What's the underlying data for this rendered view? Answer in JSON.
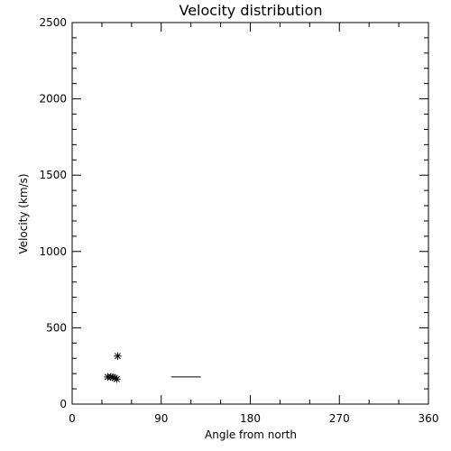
{
  "chart_data": {
    "type": "scatter",
    "title": "Velocity distribution",
    "xlabel": "Angle from north",
    "ylabel": "Velocity (km/s)",
    "xlim": [
      0,
      360
    ],
    "ylim": [
      0,
      2500
    ],
    "x_ticks": [
      0,
      90,
      180,
      270,
      360
    ],
    "y_ticks": [
      0,
      500,
      1000,
      1500,
      2000,
      2500
    ],
    "x_minor_ticks": [
      30,
      60,
      120,
      150,
      210,
      240,
      300,
      330
    ],
    "y_minor_ticks": [
      100,
      200,
      300,
      400,
      600,
      700,
      800,
      900,
      1100,
      1200,
      1300,
      1400,
      1600,
      1700,
      1800,
      1900,
      2100,
      2200,
      2300,
      2400
    ],
    "grid": false,
    "series": [
      {
        "marker": "asterisk",
        "points": [
          {
            "x": 46,
            "y": 315
          },
          {
            "x": 36,
            "y": 178
          },
          {
            "x": 39,
            "y": 178
          },
          {
            "x": 41,
            "y": 176
          },
          {
            "x": 43,
            "y": 172
          },
          {
            "x": 45,
            "y": 164
          }
        ]
      },
      {
        "marker": "line",
        "points": [
          {
            "x": 100,
            "y": 178
          },
          {
            "x": 130,
            "y": 178
          }
        ]
      }
    ]
  }
}
